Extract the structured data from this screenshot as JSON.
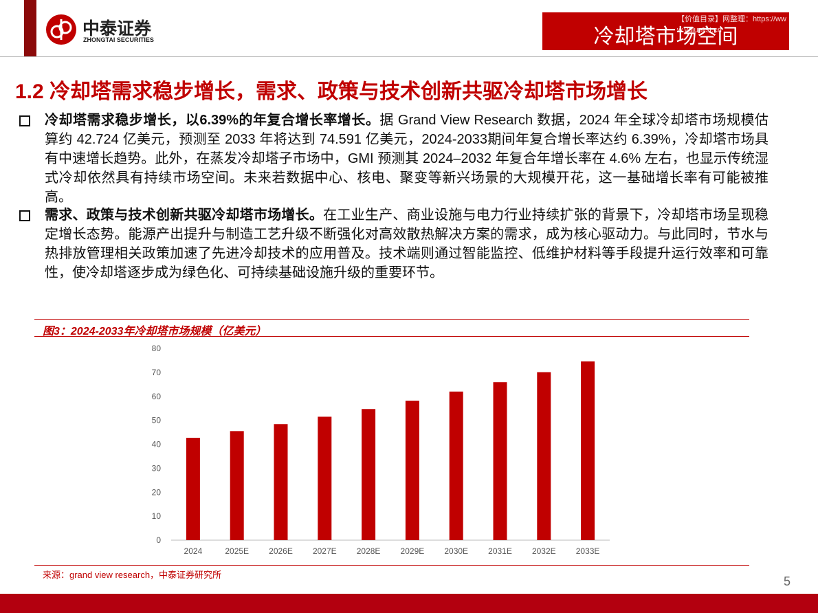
{
  "header": {
    "logo_cn": "中泰证券",
    "logo_en": "ZHONGTAI SECURITIES",
    "section": "冷却塔市场空间",
    "watermark": "【价值目录】网整理：https://www.valuelist.cn"
  },
  "title": "1.2 冷却塔需求稳步增长，需求、政策与技术创新共驱冷却塔市场增长",
  "bullets": [
    {
      "lead": "冷却塔需求稳步增长，以6.39%的年复合增长率增长。",
      "text": "据 Grand View Research 数据，2024 年全球冷却塔市场规模估算约 42.724 亿美元，预测至 2033 年将达到 74.591 亿美元，2024-2033期间年复合增长率达约 6.39%，冷却塔市场具有中速增长趋势。此外，在蒸发冷却塔子市场中，GMI 预测其 2024–2032 年复合年增长率在 4.6% 左右，也显示传统湿式冷却依然具有持续市场空间。未来若数据中心、核电、聚变等新兴场景的大规模开花，这一基础增长率有可能被推高。"
    },
    {
      "lead": "需求、政策与技术创新共驱冷却塔市场增长。",
      "text": "在工业生产、商业设施与电力行业持续扩张的背景下，冷却塔市场呈现稳定增长态势。能源产出提升与制造工艺升级不断强化对高效散热解决方案的需求，成为核心驱动力。与此同时，节水与热排放管理相关政策加速了先进冷却技术的应用普及。技术端则通过智能监控、低维护材料等手段提升运行效率和可靠性，使冷却塔逐步成为绿色化、可持续基础设施升级的重要环节。"
    }
  ],
  "figure": {
    "type": "bar",
    "title": "图3：2024-2033年冷却塔市场规模（亿美元）",
    "categories": [
      "2024",
      "2025E",
      "2026E",
      "2027E",
      "2028E",
      "2029E",
      "2030E",
      "2031E",
      "2032E",
      "2033E"
    ],
    "values": [
      42.7,
      45.5,
      48.4,
      51.5,
      54.7,
      58.2,
      62.0,
      65.9,
      70.1,
      74.6
    ],
    "color": "#c00000",
    "ylim": [
      0,
      80
    ],
    "yticks": [
      0,
      10,
      20,
      30,
      40,
      50,
      60,
      70,
      80
    ],
    "source": "来源：grand view research，中泰证券研究所"
  },
  "page_number": "5"
}
